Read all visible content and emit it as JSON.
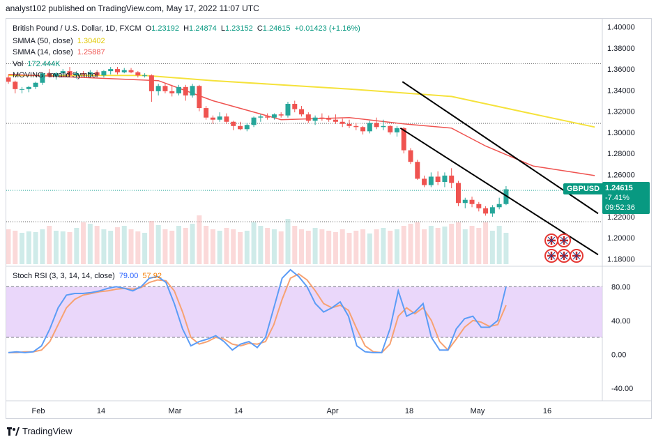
{
  "header": {
    "text": "analyst102 published on TradingView.com, May 17, 2022 11:07 UTC"
  },
  "legend": {
    "symbol": "British Pound / U.S. Dollar, 1D, FXCM",
    "o_label": "O",
    "o": "1.23192",
    "h_label": "H",
    "h": "1.24874",
    "l_label": "L",
    "l": "1.23152",
    "c_label": "C",
    "c": "1.24615",
    "change": "+0.01423 (+1.16%)",
    "sma50_label": "SMMA (50, close)",
    "sma50_value": "1.30402",
    "sma14_label": "SMMA (14, close)",
    "sma14_value": "1.25887",
    "vol_label": "Vol",
    "vol_value": "172.444K",
    "moving_label": "MOVING: Invalid Symbol",
    "stoch_label": "Stoch RSI (3, 3, 14, 14, close)",
    "stoch_k": "79.00",
    "stoch_d": "57.92"
  },
  "price_tag": {
    "symbol": "GBPUSD",
    "price": "1.24615",
    "change": "-7.41%",
    "countdown": "09:52:36"
  },
  "footer": {
    "brand": "TradingView"
  },
  "colors": {
    "up": "#26a69a",
    "down": "#ef5350",
    "sma50": "#f5e23b",
    "sma14": "#ef5350",
    "stoch_k": "#5b9cf6",
    "stoch_d": "#f7a272",
    "stoch_band": "#e1c6f8",
    "channel": "#000000"
  },
  "chart_data": {
    "type": "candlestick",
    "y_ticks": [
      "1.40000",
      "1.38000",
      "1.36000",
      "1.34000",
      "1.32000",
      "1.30000",
      "1.28000",
      "1.26000",
      "1.24000",
      "1.22000",
      "1.20000",
      "1.18000"
    ],
    "ylim": [
      1.175,
      1.405
    ],
    "x_ticks": [
      "Feb",
      "14",
      "Mar",
      "14",
      "Apr",
      "18",
      "May",
      "16"
    ],
    "candles": [
      [
        1.352,
        1.354,
        1.346,
        1.348
      ],
      [
        1.348,
        1.349,
        1.337,
        1.341
      ],
      [
        1.341,
        1.343,
        1.337,
        1.341
      ],
      [
        1.341,
        1.344,
        1.338,
        1.343
      ],
      [
        1.343,
        1.348,
        1.341,
        1.347
      ],
      [
        1.347,
        1.357,
        1.345,
        1.356
      ],
      [
        1.356,
        1.36,
        1.352,
        1.353
      ],
      [
        1.353,
        1.357,
        1.35,
        1.356
      ],
      [
        1.356,
        1.36,
        1.354,
        1.358
      ],
      [
        1.358,
        1.362,
        1.353,
        1.354
      ],
      [
        1.354,
        1.358,
        1.351,
        1.356
      ],
      [
        1.356,
        1.358,
        1.353,
        1.355
      ],
      [
        1.355,
        1.359,
        1.352,
        1.357
      ],
      [
        1.357,
        1.359,
        1.353,
        1.354
      ],
      [
        1.354,
        1.359,
        1.352,
        1.358
      ],
      [
        1.358,
        1.362,
        1.355,
        1.36
      ],
      [
        1.36,
        1.362,
        1.355,
        1.357
      ],
      [
        1.357,
        1.361,
        1.356,
        1.359
      ],
      [
        1.359,
        1.361,
        1.356,
        1.357
      ],
      [
        1.357,
        1.358,
        1.352,
        1.354
      ],
      [
        1.354,
        1.356,
        1.352,
        1.354
      ],
      [
        1.354,
        1.355,
        1.329,
        1.339
      ],
      [
        1.339,
        1.346,
        1.335,
        1.344
      ],
      [
        1.344,
        1.346,
        1.337,
        1.339
      ],
      [
        1.339,
        1.345,
        1.334,
        1.337
      ],
      [
        1.337,
        1.345,
        1.335,
        1.343
      ],
      [
        1.343,
        1.345,
        1.33,
        1.335
      ],
      [
        1.335,
        1.346,
        1.333,
        1.344
      ],
      [
        1.344,
        1.345,
        1.32,
        1.323
      ],
      [
        1.323,
        1.325,
        1.312,
        1.314
      ],
      [
        1.314,
        1.316,
        1.308,
        1.312
      ],
      [
        1.312,
        1.319,
        1.31,
        1.315
      ],
      [
        1.315,
        1.318,
        1.308,
        1.31
      ],
      [
        1.31,
        1.311,
        1.302,
        1.306
      ],
      [
        1.306,
        1.31,
        1.302,
        1.303
      ],
      [
        1.303,
        1.309,
        1.301,
        1.307
      ],
      [
        1.307,
        1.315,
        1.305,
        1.314
      ],
      [
        1.314,
        1.317,
        1.31,
        1.315
      ],
      [
        1.315,
        1.318,
        1.312,
        1.314
      ],
      [
        1.314,
        1.318,
        1.312,
        1.317
      ],
      [
        1.317,
        1.319,
        1.314,
        1.316
      ],
      [
        1.316,
        1.329,
        1.314,
        1.327
      ],
      [
        1.327,
        1.33,
        1.319,
        1.322
      ],
      [
        1.322,
        1.325,
        1.315,
        1.317
      ],
      [
        1.317,
        1.319,
        1.309,
        1.311
      ],
      [
        1.311,
        1.316,
        1.307,
        1.314
      ],
      [
        1.314,
        1.318,
        1.311,
        1.313
      ],
      [
        1.313,
        1.316,
        1.31,
        1.312
      ],
      [
        1.312,
        1.317,
        1.308,
        1.31
      ],
      [
        1.31,
        1.313,
        1.305,
        1.308
      ],
      [
        1.308,
        1.312,
        1.304,
        1.306
      ],
      [
        1.306,
        1.309,
        1.302,
        1.305
      ],
      [
        1.305,
        1.306,
        1.298,
        1.301
      ],
      [
        1.301,
        1.311,
        1.299,
        1.309
      ],
      [
        1.309,
        1.314,
        1.303,
        1.305
      ],
      [
        1.305,
        1.312,
        1.302,
        1.306
      ],
      [
        1.306,
        1.307,
        1.298,
        1.3
      ],
      [
        1.3,
        1.306,
        1.296,
        1.304
      ],
      [
        1.304,
        1.305,
        1.28,
        1.283
      ],
      [
        1.283,
        1.285,
        1.27,
        1.272
      ],
      [
        1.272,
        1.274,
        1.255,
        1.256
      ],
      [
        1.256,
        1.259,
        1.248,
        1.25
      ],
      [
        1.25,
        1.262,
        1.248,
        1.258
      ],
      [
        1.258,
        1.263,
        1.25,
        1.253
      ],
      [
        1.253,
        1.262,
        1.248,
        1.259
      ],
      [
        1.259,
        1.266,
        1.247,
        1.252
      ],
      [
        1.252,
        1.254,
        1.23,
        1.233
      ],
      [
        1.233,
        1.238,
        1.228,
        1.236
      ],
      [
        1.236,
        1.239,
        1.229,
        1.232
      ],
      [
        1.232,
        1.234,
        1.225,
        1.228
      ],
      [
        1.228,
        1.23,
        1.221,
        1.223
      ],
      [
        1.223,
        1.231,
        1.22,
        1.229
      ],
      [
        1.229,
        1.238,
        1.227,
        1.232
      ],
      [
        1.232,
        1.249,
        1.231,
        1.246
      ]
    ],
    "sma50": [
      [
        0,
        1.354
      ],
      [
        20,
        1.354
      ],
      [
        30,
        1.349
      ],
      [
        50,
        1.341
      ],
      [
        65,
        1.334
      ],
      [
        78,
        1.316
      ],
      [
        86,
        1.305
      ]
    ],
    "sma14": [
      [
        0,
        1.355
      ],
      [
        22,
        1.349
      ],
      [
        30,
        1.33
      ],
      [
        40,
        1.312
      ],
      [
        50,
        1.314
      ],
      [
        58,
        1.308
      ],
      [
        65,
        1.304
      ],
      [
        70,
        1.287
      ],
      [
        77,
        1.268
      ],
      [
        86,
        1.259
      ]
    ],
    "volume": [
      50,
      48,
      45,
      47,
      46,
      50,
      55,
      48,
      47,
      46,
      52,
      60,
      58,
      55,
      50,
      48,
      53,
      55,
      50,
      47,
      45,
      62,
      56,
      50,
      48,
      55,
      52,
      58,
      70,
      55,
      50,
      48,
      52,
      50,
      46,
      48,
      60,
      55,
      52,
      50,
      47,
      65,
      55,
      50,
      48,
      52,
      50,
      48,
      46,
      50,
      45,
      48,
      50,
      44,
      50,
      52,
      48,
      50,
      55,
      58,
      60,
      50,
      55,
      52,
      54,
      58,
      60,
      50,
      55,
      52,
      60,
      48,
      55,
      45
    ],
    "channel_upper": [
      [
        57.8,
        1.348
      ],
      [
        86.5,
        1.223
      ]
    ],
    "channel_lower": [
      [
        57.5,
        1.304
      ],
      [
        86.5,
        1.184
      ]
    ],
    "stoch": {
      "y_ticks": [
        "80.00",
        "40.00",
        "0.00",
        "-40.00"
      ],
      "ylim": [
        -55,
        100
      ],
      "band": [
        20,
        80
      ],
      "k": [
        2,
        3,
        2,
        3,
        10,
        30,
        55,
        70,
        72,
        72,
        73,
        75,
        78,
        80,
        78,
        75,
        80,
        90,
        92,
        85,
        60,
        30,
        10,
        15,
        18,
        22,
        15,
        5,
        12,
        15,
        8,
        20,
        55,
        90,
        100,
        92,
        80,
        60,
        50,
        55,
        62,
        45,
        10,
        3,
        2,
        2,
        30,
        75,
        45,
        50,
        60,
        20,
        5,
        5,
        30,
        42,
        45,
        32,
        32,
        40,
        80
      ],
      "d": [
        2,
        2,
        3,
        3,
        5,
        15,
        35,
        55,
        65,
        70,
        72,
        74,
        75,
        77,
        78,
        77,
        79,
        85,
        88,
        87,
        75,
        50,
        20,
        12,
        15,
        20,
        18,
        12,
        10,
        13,
        12,
        15,
        35,
        65,
        90,
        95,
        88,
        75,
        60,
        55,
        58,
        52,
        30,
        10,
        3,
        2,
        12,
        45,
        55,
        48,
        55,
        40,
        15,
        5,
        18,
        32,
        40,
        38,
        33,
        35,
        58
      ]
    }
  }
}
